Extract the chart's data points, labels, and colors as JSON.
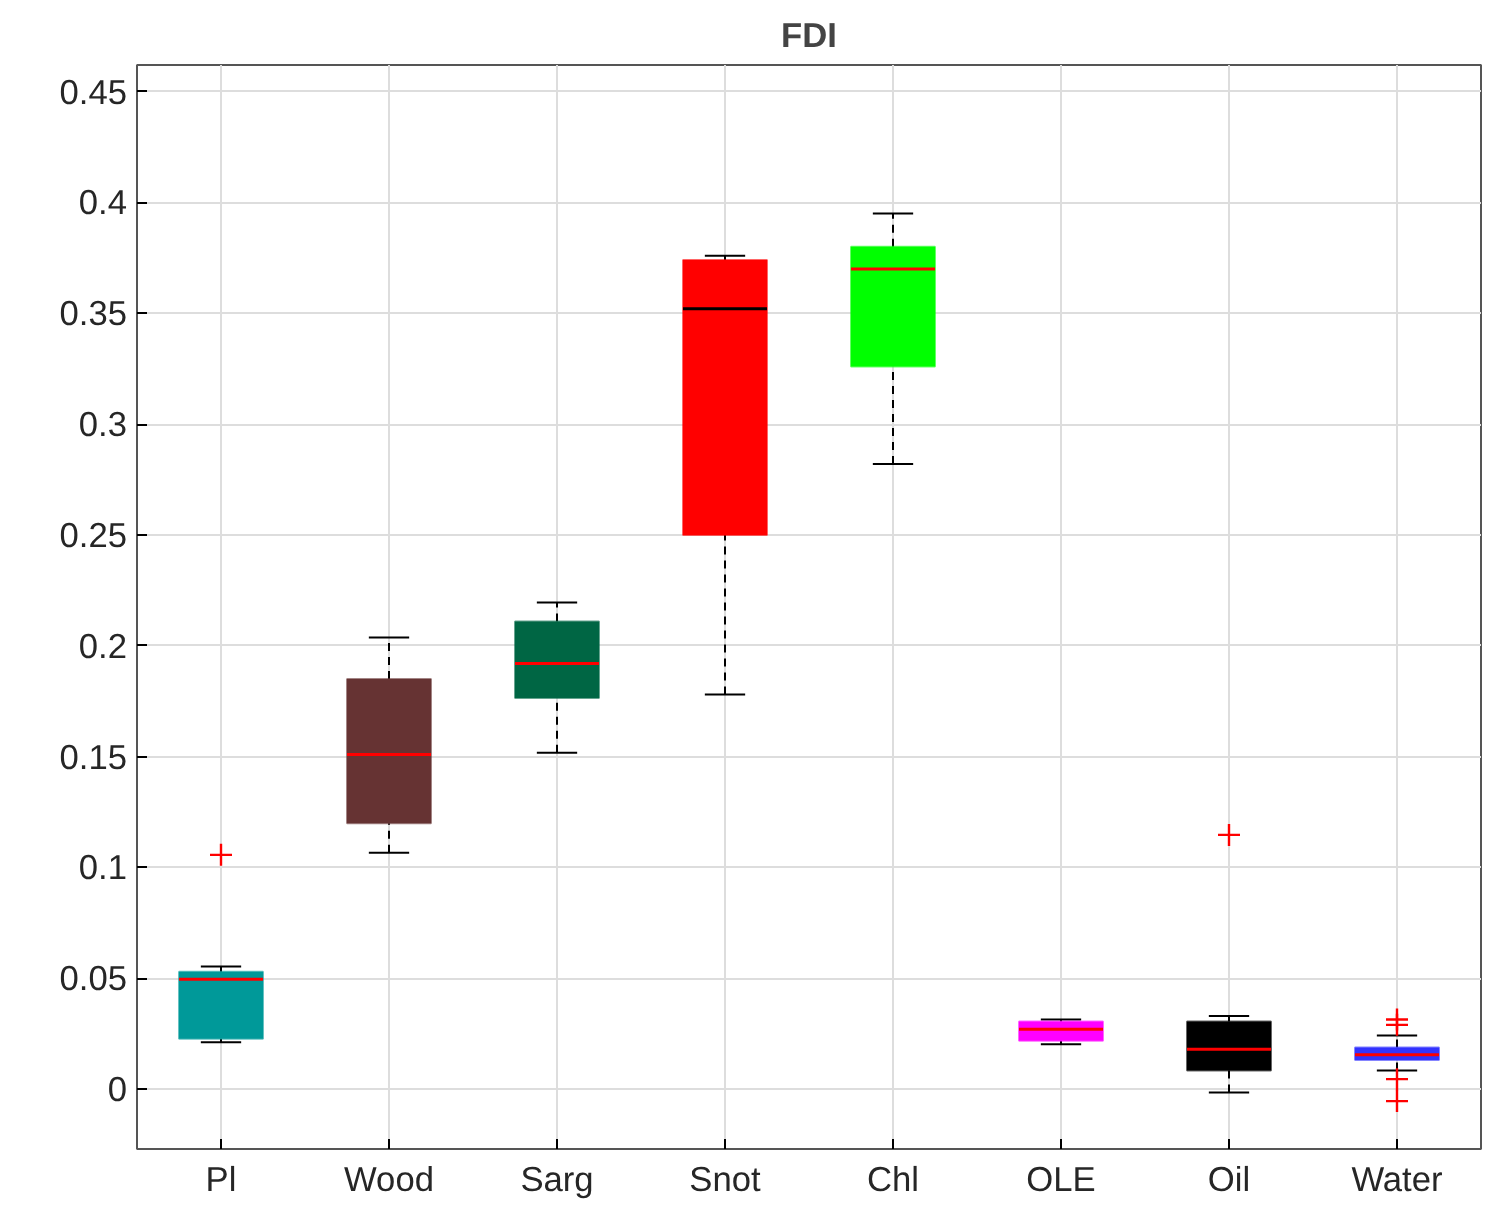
{
  "chart_data": {
    "type": "box",
    "title": "FDI",
    "categories": [
      "Pl",
      "Wood",
      "Sarg",
      "Snot",
      "Chl",
      "OLE",
      "Oil",
      "Water"
    ],
    "colors": [
      "#009999",
      "#663333",
      "#006644",
      "#ff0000",
      "#00ff00",
      "#ff00ff",
      "#000000",
      "#3333ff"
    ],
    "boxes": [
      {
        "low": 0.0212,
        "q1": 0.0227,
        "median": 0.0496,
        "q3": 0.053,
        "high": 0.0553,
        "outliers": [
          0.1057
        ]
      },
      {
        "low": 0.1066,
        "q1": 0.12,
        "median": 0.151,
        "q3": 0.185,
        "high": 0.2037
      },
      {
        "low": 0.1517,
        "q1": 0.1765,
        "median": 0.192,
        "q3": 0.211,
        "high": 0.2195
      },
      {
        "low": 0.178,
        "q1": 0.25,
        "median": 0.352,
        "q3": 0.374,
        "high": 0.376
      },
      {
        "low": 0.282,
        "q1": 0.326,
        "median": 0.37,
        "q3": 0.38,
        "high": 0.395
      },
      {
        "low": 0.0203,
        "q1": 0.0218,
        "median": 0.027,
        "q3": 0.0305,
        "high": 0.0314
      },
      {
        "low": -0.0015,
        "q1": 0.0084,
        "median": 0.018,
        "q3": 0.0305,
        "high": 0.033,
        "outliers": [
          0.1147
        ]
      },
      {
        "low": 0.0084,
        "q1": 0.0131,
        "median": 0.0155,
        "q3": 0.0188,
        "high": 0.0242,
        "outliers": [
          0.0314,
          0.029,
          0.0045,
          -0.0054
        ]
      }
    ],
    "ylim": [
      -0.027,
      0.462
    ],
    "yticks": [
      0,
      0.05,
      0.1,
      0.15,
      0.2,
      0.25,
      0.3,
      0.35,
      0.4,
      0.45
    ],
    "grid": true
  }
}
